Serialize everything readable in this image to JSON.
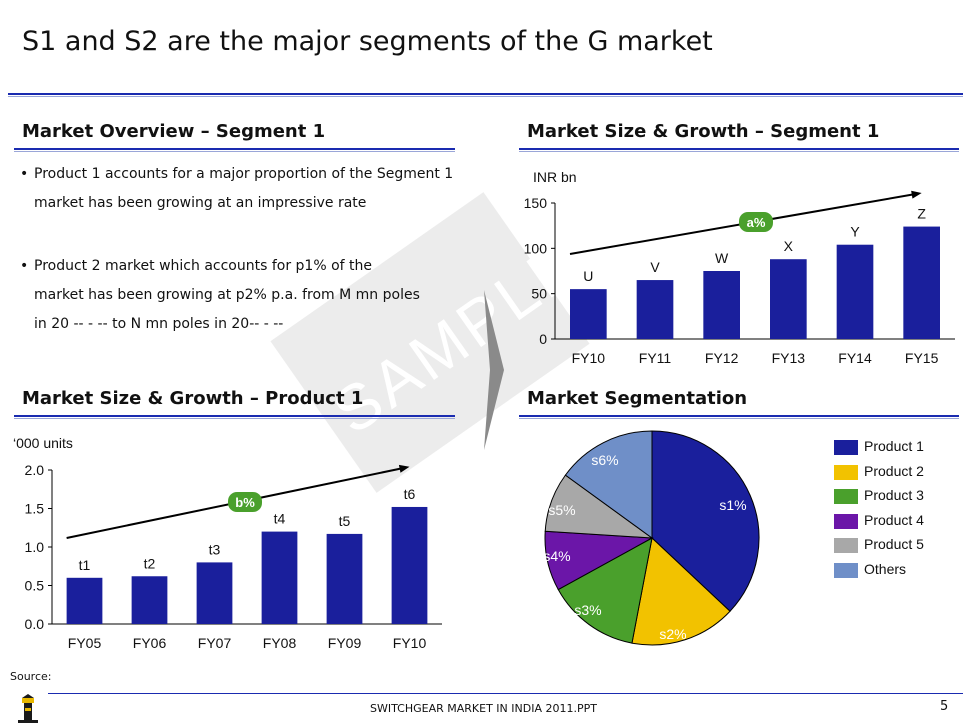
{
  "title": "S1 and S2 are the major segments of the G market",
  "sections": {
    "overview": "Market Overview – Segment 1",
    "growth_seg1": "Market Size & Growth – Segment 1",
    "growth_prod1": "Market Size & Growth – Product 1",
    "segmentation": "Market Segmentation"
  },
  "bullets": [
    "Product 1 accounts for a major proportion of the Segment 1 market has been growing at an impressive rate",
    "Product 2 market which accounts for p1% of the market has been growing at p2% p.a. from M mn poles in 20 -- - -- to N mn poles in 20-- - --"
  ],
  "watermark": "SAMPLE",
  "source": "Source:",
  "footer": "SWITCHGEAR MARKET IN INDIA 2011.PPT",
  "page_number": "5",
  "colors": {
    "bar": "#1a1f9c",
    "accent": "#1a2bb0",
    "badge": "#4aa02c"
  },
  "chart_data": [
    {
      "type": "bar",
      "title": "Market Size & Growth – Segment 1",
      "unit_label": "INR bn",
      "categories": [
        "FY10",
        "FY11",
        "FY12",
        "FY13",
        "FY14",
        "FY15"
      ],
      "values": [
        55,
        65,
        75,
        88,
        104,
        124
      ],
      "data_labels": [
        "U",
        "V",
        "W",
        "X",
        "Y",
        "Z"
      ],
      "yticks": [
        0,
        50,
        100,
        150
      ],
      "ylim": [
        0,
        150
      ],
      "cagr_badge": "a%"
    },
    {
      "type": "bar",
      "title": "Market Size & Growth – Product 1",
      "unit_label": "‘000 units",
      "categories": [
        "FY05",
        "FY06",
        "FY07",
        "FY08",
        "FY09",
        "FY10"
      ],
      "values": [
        0.6,
        0.62,
        0.8,
        1.2,
        1.17,
        1.52
      ],
      "data_labels": [
        "t1",
        "t2",
        "t3",
        "t4",
        "t5",
        "t6"
      ],
      "yticks": [
        "0.0",
        "0.5",
        "1.0",
        "1.5",
        "2.0"
      ],
      "ylim": [
        0,
        2.0
      ],
      "cagr_badge": "b%"
    },
    {
      "type": "pie",
      "title": "Market Segmentation",
      "slices": [
        {
          "label": "s1%",
          "legend": "Product 1",
          "value": 37,
          "color": "#1a1f9c"
        },
        {
          "label": "s2%",
          "legend": "Product 2",
          "value": 16,
          "color": "#f2c200"
        },
        {
          "label": "s3%",
          "legend": "Product 3",
          "value": 14,
          "color": "#4aa02c"
        },
        {
          "label": "s4%",
          "legend": "Product 4",
          "value": 9,
          "color": "#6b16a8"
        },
        {
          "label": "s5%",
          "legend": "Product 5",
          "value": 9,
          "color": "#a8a8a8"
        },
        {
          "label": "s6%",
          "legend": "Others",
          "value": 15,
          "color": "#6f8fc8"
        }
      ]
    }
  ]
}
